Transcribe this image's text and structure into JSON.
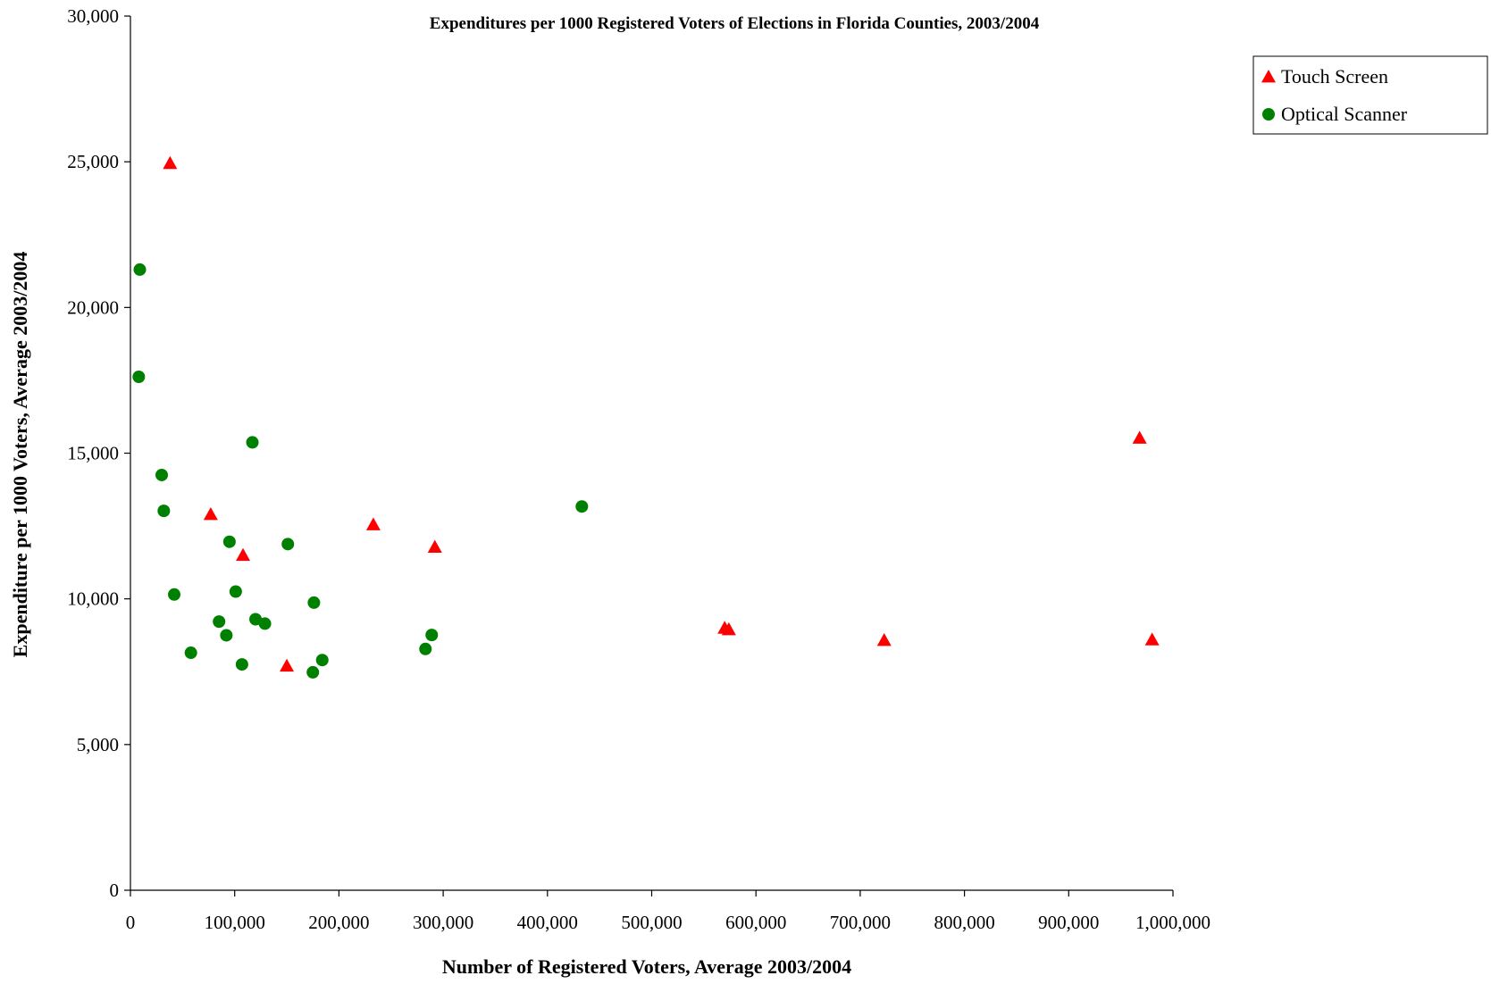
{
  "chart_data": {
    "type": "scatter",
    "title": "Expenditures per 1000 Registered Voters  of Elections in Florida Counties, 2003/2004",
    "xlabel": "Number of Registered Voters, Average 2003/2004",
    "ylabel": "Expenditure per 1000 Voters, Average 2003/2004",
    "xlim": [
      0,
      1000000
    ],
    "ylim": [
      0,
      30000
    ],
    "x_ticks": [
      0,
      100000,
      200000,
      300000,
      400000,
      500000,
      600000,
      700000,
      800000,
      900000,
      1000000
    ],
    "x_tick_labels": [
      "0",
      "100,000",
      "200,000",
      "300,000",
      "400,000",
      "500,000",
      "600,000",
      "700,000",
      "800,000",
      "900,000",
      "1,000,000"
    ],
    "y_ticks": [
      0,
      5000,
      10000,
      15000,
      20000,
      25000,
      30000
    ],
    "y_tick_labels": [
      "0",
      "5,000",
      "10,000",
      "15,000",
      "20,000",
      "25,000",
      "30,000"
    ],
    "grid": false,
    "legend_position": "top-right",
    "series": [
      {
        "name": "Touch Screen",
        "marker": "triangle",
        "color": "#ff0000",
        "points": [
          [
            38000,
            24950
          ],
          [
            77000,
            12900
          ],
          [
            108000,
            11500
          ],
          [
            150000,
            7700
          ],
          [
            233000,
            12550
          ],
          [
            292000,
            11780
          ],
          [
            570000,
            9000
          ],
          [
            574000,
            8950
          ],
          [
            723000,
            8580
          ],
          [
            968000,
            15520
          ],
          [
            980000,
            8600
          ]
        ]
      },
      {
        "name": "Optical Scanner",
        "marker": "circle",
        "color": "#008000",
        "points": [
          [
            9000,
            21300
          ],
          [
            8000,
            17620
          ],
          [
            30000,
            14250
          ],
          [
            32000,
            13020
          ],
          [
            42000,
            10150
          ],
          [
            58000,
            8150
          ],
          [
            85000,
            9220
          ],
          [
            92000,
            8750
          ],
          [
            95000,
            11960
          ],
          [
            101000,
            10250
          ],
          [
            107000,
            7750
          ],
          [
            117000,
            15370
          ],
          [
            120000,
            9300
          ],
          [
            129000,
            9150
          ],
          [
            151000,
            11880
          ],
          [
            175000,
            7480
          ],
          [
            176000,
            9870
          ],
          [
            184000,
            7900
          ],
          [
            283000,
            8280
          ],
          [
            289000,
            8760
          ],
          [
            433000,
            13170
          ]
        ]
      }
    ]
  }
}
